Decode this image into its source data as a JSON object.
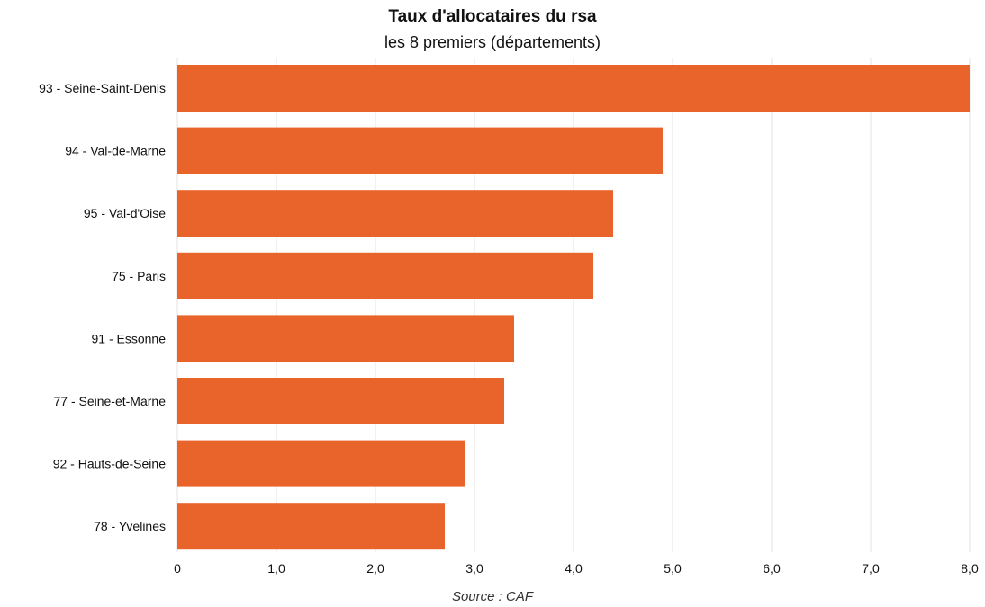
{
  "chart_data": {
    "type": "bar",
    "orientation": "horizontal",
    "title": "Taux d'allocataires du rsa",
    "subtitle": "les 8 premiers (départements)",
    "source": "Source : CAF",
    "categories": [
      "93 - Seine-Saint-Denis",
      "94 - Val-de-Marne",
      "95 - Val-d'Oise",
      "75 - Paris",
      "91 - Essonne",
      "77 - Seine-et-Marne",
      "92 - Hauts-de-Seine",
      "78 - Yvelines"
    ],
    "values": [
      8.0,
      4.9,
      4.4,
      4.2,
      3.4,
      3.3,
      2.9,
      2.7
    ],
    "xlim": [
      0,
      8
    ],
    "xticks": [
      0,
      1,
      2,
      3,
      4,
      5,
      6,
      7,
      8
    ],
    "xtick_labels": [
      "0",
      "1,0",
      "2,0",
      "3,0",
      "4,0",
      "5,0",
      "6,0",
      "7,0",
      "8,0"
    ],
    "grid": true,
    "bar_color": "#E8642A",
    "grid_color": "#E3E3E3"
  }
}
